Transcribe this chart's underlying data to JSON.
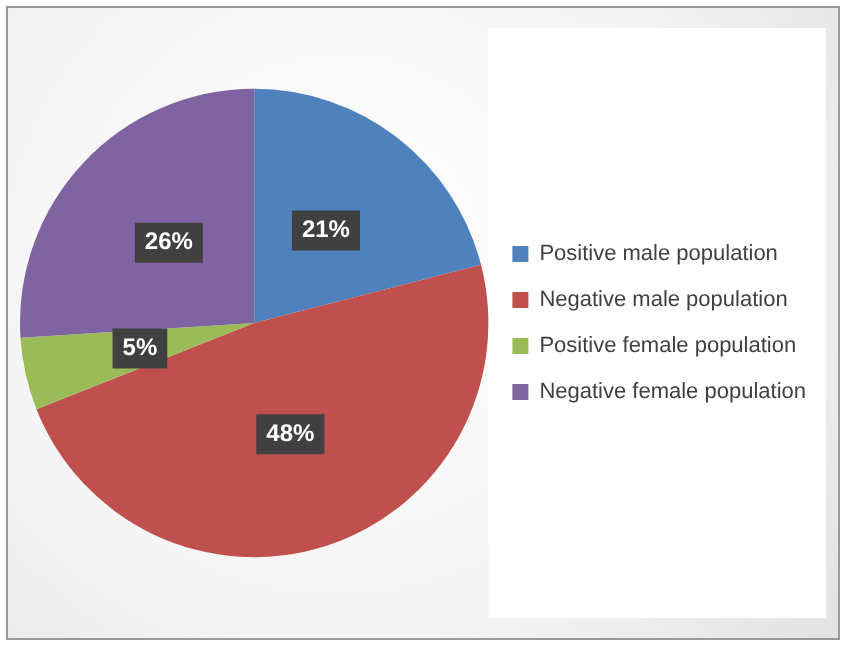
{
  "chart_data": {
    "type": "pie",
    "categories": [
      "Positive male population",
      "Negative male population",
      "Positive female population",
      "Negative female population"
    ],
    "values": [
      21,
      48,
      5,
      26
    ],
    "colors": [
      "#4f81bd",
      "#c0504d",
      "#9bbb59",
      "#8064a2"
    ],
    "value_labels": [
      "21%",
      "48%",
      "5%",
      "26%"
    ],
    "legend": "right"
  }
}
